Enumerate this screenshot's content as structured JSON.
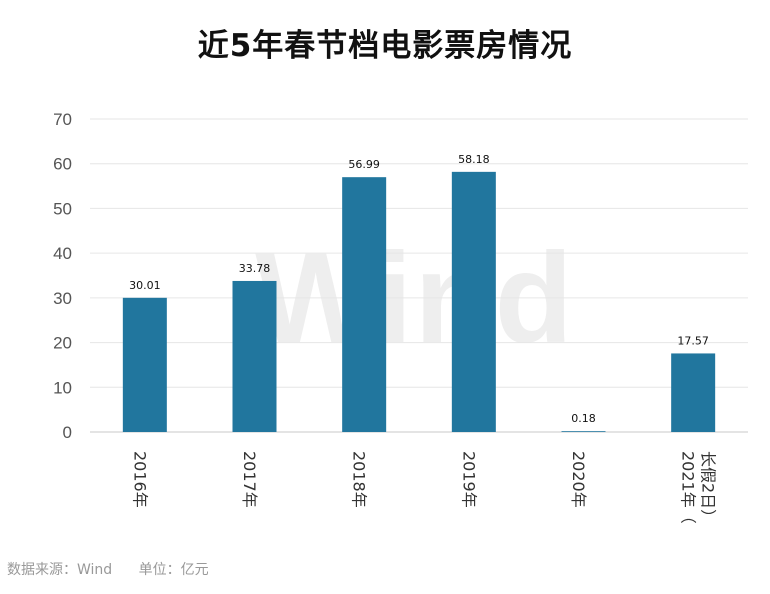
{
  "chart_data": {
    "type": "bar",
    "title": "近5年春节档电影票房情况",
    "categories": [
      "2016年",
      "2017年",
      "2018年",
      "2019年",
      "2020年",
      "2021年（长假2日）"
    ],
    "values": [
      30.01,
      33.78,
      56.99,
      58.18,
      0.18,
      17.57
    ],
    "data_labels": [
      "30.01",
      "33.78",
      "56.99",
      "58.18",
      "0.18",
      "17.57"
    ],
    "ylim": [
      0,
      70
    ],
    "yticks": [
      0,
      10,
      20,
      30,
      40,
      50,
      60,
      70
    ],
    "grid": true,
    "bar_color": "#21769e",
    "xlabel": "",
    "ylabel": ""
  },
  "watermark": "Wind",
  "footer": {
    "source": "数据来源：Wind",
    "unit": "单位：亿元"
  }
}
